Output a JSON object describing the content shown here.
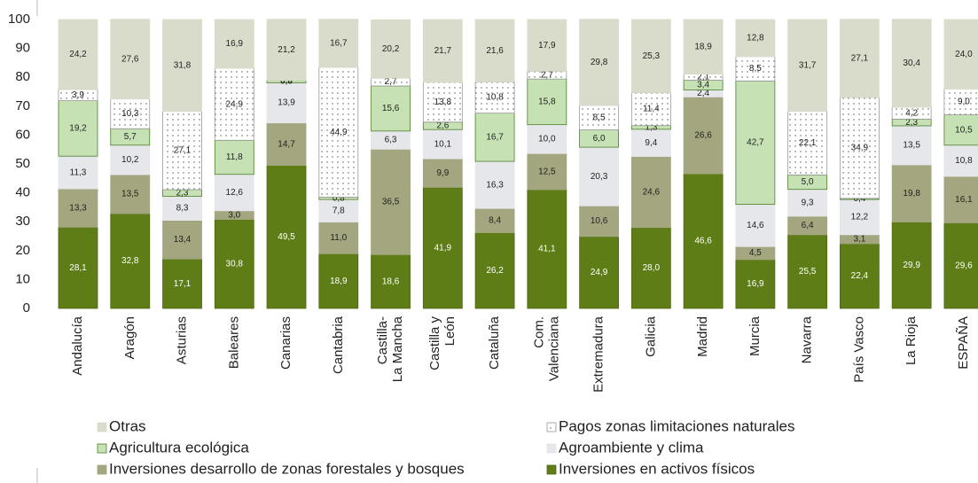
{
  "chart_data": {
    "type": "stacked_bar",
    "categories": [
      "Andalucía",
      "Aragón",
      "Asturias",
      "Baleares",
      "Canarias",
      "Cantabria",
      "Castilla-\nLa Mancha",
      "Castilla y\nLeón",
      "Cataluña",
      "Com.\nValenciana",
      "Extremadura",
      "Galicia",
      "Madrid",
      "Murcia",
      "Navarra",
      "País Vasco",
      "La Rioja",
      "ESPAÑA"
    ],
    "ylim": [
      0,
      100
    ],
    "yticks": [
      0,
      10,
      20,
      30,
      40,
      50,
      60,
      70,
      80,
      90,
      100
    ],
    "series": [
      {
        "name": "Inversiones en activos físicos",
        "color": "#5e7d17",
        "border": "#4d6a10",
        "text_color": "#ffffff",
        "values": [
          28.1,
          32.8,
          17.1,
          30.8,
          49.5,
          18.9,
          18.6,
          41.9,
          26.2,
          41.1,
          24.9,
          28.0,
          46.6,
          16.9,
          25.5,
          22.4,
          29.9,
          29.6
        ],
        "value_labels": [
          "28,1",
          "32,8",
          "17,1",
          "30,8",
          "49,5",
          "18,9",
          "18,6",
          "41,9",
          "26,2",
          "41,1",
          "24,9",
          "28,0",
          "46,6",
          "16,9",
          "25,5",
          "22,4",
          "29,9",
          "29,6"
        ]
      },
      {
        "name": "Inversiones desarrollo de zonas forestales y bosques",
        "color": "#a3a67e",
        "border": "#a3a67e",
        "text_color": "#222222",
        "values": [
          13.3,
          13.5,
          13.4,
          3.0,
          14.7,
          11.0,
          36.5,
          9.9,
          8.4,
          12.5,
          10.6,
          24.6,
          26.6,
          4.5,
          6.4,
          3.1,
          19.8,
          16.1
        ],
        "value_labels": [
          "13,3",
          "13,5",
          "13,4",
          "3,0",
          "14,7",
          "11,0",
          "36,5",
          "9,9",
          "8,4",
          "12,5",
          "10,6",
          "24,6",
          "26,6",
          "4,5",
          "6,4",
          "3,1",
          "19,8",
          "16,1"
        ]
      },
      {
        "name": "Agroambiente y clima",
        "color": "#e6e7ea",
        "border": "#e6e7ea",
        "text_color": "#222222",
        "values": [
          11.3,
          10.2,
          8.3,
          12.6,
          13.9,
          7.8,
          6.3,
          10.1,
          16.3,
          10.0,
          20.3,
          9.4,
          2.4,
          14.6,
          9.3,
          12.2,
          13.5,
          10.8
        ],
        "value_labels": [
          "11,3",
          "10,2",
          "8,3",
          "12,6",
          "13,9",
          "7,8",
          "6,3",
          "10,1",
          "16,3",
          "10,0",
          "20,3",
          "9,4",
          "2,4",
          "14,6",
          "9,3",
          "12,2",
          "13,5",
          "10,8"
        ]
      },
      {
        "name": "Agricultura ecológica",
        "color": "#c6e2b5",
        "border": "#4f7d2a",
        "text_color": "#222222",
        "values": [
          19.2,
          5.7,
          2.3,
          11.8,
          0.8,
          0.8,
          15.6,
          2.6,
          16.7,
          15.8,
          6.0,
          1.3,
          3.4,
          42.7,
          5.0,
          0.4,
          2.3,
          10.5
        ],
        "value_labels": [
          "19,2",
          "5,7",
          "2,3",
          "11,8",
          "0,8",
          "0,8",
          "15,6",
          "2,6",
          "16,7",
          "15,8",
          "6,0",
          "1,3",
          "3,4",
          "42,7",
          "5,0",
          "0,4",
          "2,3",
          "10,5"
        ]
      },
      {
        "name": "Pagos zonas limitaciones naturales",
        "color": "#ffffff",
        "border": "#9a9a9a",
        "pattern": "dots",
        "text_color": "#222222",
        "values": [
          3.9,
          10.3,
          27.1,
          24.9,
          0.0,
          44.9,
          2.7,
          13.8,
          10.8,
          2.7,
          8.5,
          11.4,
          2.1,
          8.5,
          22.1,
          34.9,
          4.2,
          9.0
        ],
        "value_labels": [
          "3,9",
          "10,3",
          "27,1",
          "24,9",
          "0,0",
          "44,9",
          "2,7",
          "13,8",
          "10,8",
          "2,7",
          "8,5",
          "11,4",
          "2,1",
          "8,5",
          "22,1",
          "34,9",
          "4,2",
          "9,0"
        ]
      },
      {
        "name": "Otras",
        "color": "#dadccb",
        "border": "#dadccb",
        "text_color": "#222222",
        "values": [
          24.2,
          27.6,
          31.8,
          16.9,
          21.2,
          16.7,
          20.2,
          21.7,
          21.6,
          17.9,
          29.8,
          25.3,
          18.9,
          12.8,
          31.7,
          27.1,
          30.4,
          24.0
        ],
        "value_labels": [
          "24,2",
          "27,6",
          "31,8",
          "16,9",
          "21,2",
          "16,7",
          "20,2",
          "21,7",
          "21,6",
          "17,9",
          "29,8",
          "25,3",
          "18,9",
          "12,8",
          "31,7",
          "27,1",
          "30,4",
          "24,0"
        ]
      }
    ],
    "legend_order": [
      5,
      4,
      3,
      2,
      1,
      0
    ]
  }
}
